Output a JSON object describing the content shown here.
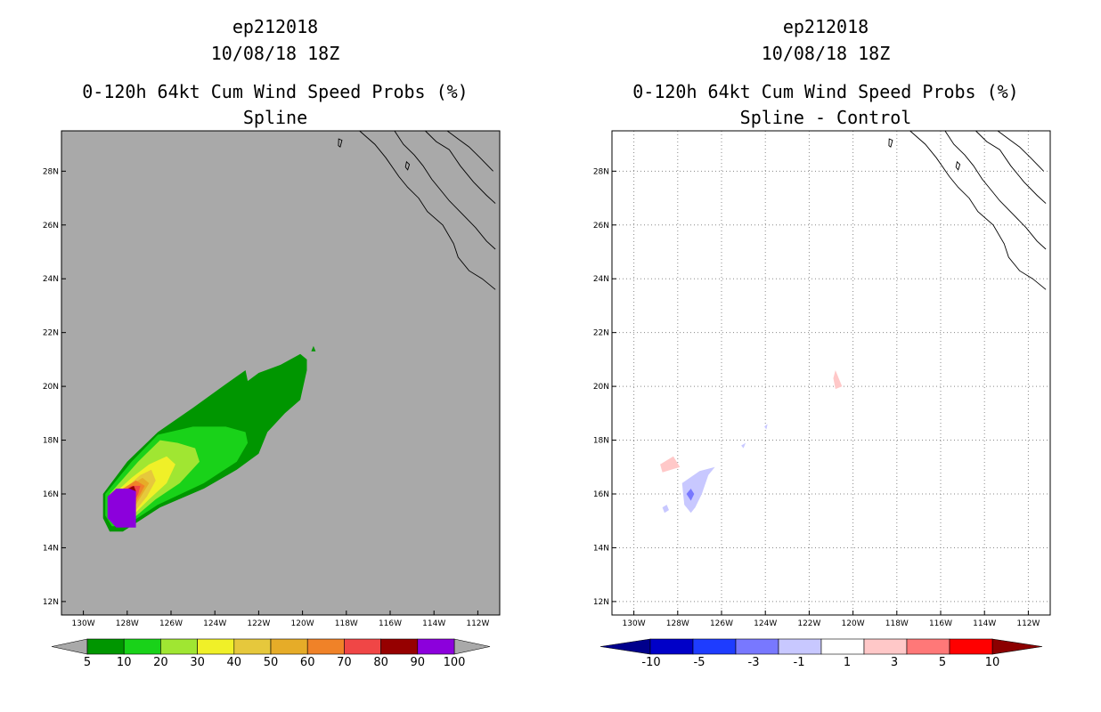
{
  "colors": {
    "land_bg": "#a9a9a9",
    "prob_scale": [
      "#009600",
      "#19d219",
      "#a0e632",
      "#f0f028",
      "#e6c83c",
      "#e6ac28",
      "#f08228",
      "#f04646",
      "#960000",
      "#8c00dc"
    ],
    "prob_under": "#a9a9a9",
    "prob_over": "#a9a9a9",
    "diff_scale": [
      "#0000c8",
      "#1e3cff",
      "#7878ff",
      "#c8c8ff",
      "#ffffff",
      "#ffc8c8",
      "#ff7878",
      "#ff0000"
    ],
    "diff_under": "#00008c",
    "diff_over": "#8c0000"
  },
  "chart_data": [
    {
      "type": "contour-map",
      "storm": "ep212018",
      "date": "10/08/18 18Z",
      "title": "0-120h 64kt Cum Wind Speed Probs (%)",
      "subtitle": "Spline",
      "lon_range": [
        -131,
        -111
      ],
      "lat_range": [
        11.5,
        29.5
      ],
      "x_ticks": [
        "130W",
        "128W",
        "126W",
        "124W",
        "122W",
        "120W",
        "118W",
        "116W",
        "114W",
        "112W"
      ],
      "y_ticks": [
        "12N",
        "14N",
        "16N",
        "18N",
        "20N",
        "22N",
        "24N",
        "26N",
        "28N"
      ],
      "grid": false,
      "colorbar_levels": [
        5,
        10,
        20,
        30,
        40,
        50,
        60,
        70,
        80,
        90,
        100
      ],
      "colorbar_labels": [
        "5",
        "10",
        "20",
        "30",
        "40",
        "50",
        "60",
        "70",
        "80",
        "90",
        "100"
      ],
      "contours": [
        {
          "level": 5,
          "points": [
            [
              -128.8,
              14.6
            ],
            [
              -128.2,
              14.6
            ],
            [
              -126.5,
              15.5
            ],
            [
              -124.5,
              16.2
            ],
            [
              -123,
              16.9
            ],
            [
              -122,
              17.5
            ],
            [
              -121.6,
              18.3
            ],
            [
              -120.8,
              19.0
            ],
            [
              -120.1,
              19.5
            ],
            [
              -119.8,
              20.6
            ],
            [
              -119.8,
              21.0
            ],
            [
              -120.1,
              21.2
            ],
            [
              -121.0,
              20.8
            ],
            [
              -122.0,
              20.5
            ],
            [
              -122.5,
              20.2
            ],
            [
              -122.6,
              20.6
            ],
            [
              -123.3,
              20.2
            ],
            [
              -125.0,
              19.2
            ],
            [
              -126.6,
              18.3
            ],
            [
              -128.0,
              17.2
            ],
            [
              -129.1,
              16.0
            ],
            [
              -129.1,
              15.1
            ]
          ]
        },
        {
          "level": 10,
          "points": [
            [
              -128.7,
              14.8
            ],
            [
              -128.1,
              14.8
            ],
            [
              -126.6,
              15.6
            ],
            [
              -124.5,
              16.4
            ],
            [
              -123.0,
              17.2
            ],
            [
              -122.5,
              17.9
            ],
            [
              -122.6,
              18.3
            ],
            [
              -123.5,
              18.5
            ],
            [
              -125.0,
              18.5
            ],
            [
              -126.6,
              18.2
            ],
            [
              -127.8,
              17.2
            ],
            [
              -129.0,
              16.0
            ],
            [
              -129.0,
              15.2
            ]
          ]
        },
        {
          "level": 20,
          "points": [
            [
              -128.6,
              14.9
            ],
            [
              -128.0,
              14.9
            ],
            [
              -126.7,
              15.8
            ],
            [
              -125.6,
              16.4
            ],
            [
              -124.7,
              17.2
            ],
            [
              -124.9,
              17.7
            ],
            [
              -125.7,
              17.9
            ],
            [
              -126.5,
              18.0
            ],
            [
              -127.5,
              17.2
            ],
            [
              -128.8,
              16.0
            ],
            [
              -128.8,
              15.3
            ]
          ]
        },
        {
          "level": 30,
          "points": [
            [
              -128.5,
              15.0
            ],
            [
              -128.0,
              15.0
            ],
            [
              -127.0,
              15.8
            ],
            [
              -126.2,
              16.4
            ],
            [
              -125.8,
              17.1
            ],
            [
              -126.2,
              17.4
            ],
            [
              -127.0,
              17.1
            ],
            [
              -127.8,
              16.6
            ],
            [
              -128.6,
              16.0
            ]
          ]
        },
        {
          "level": 40,
          "points": [
            [
              -128.4,
              15.1
            ],
            [
              -127.9,
              15.1
            ],
            [
              -127.1,
              15.9
            ],
            [
              -126.7,
              16.5
            ],
            [
              -126.9,
              16.9
            ],
            [
              -127.4,
              16.7
            ],
            [
              -128.4,
              16.0
            ]
          ]
        },
        {
          "level": 50,
          "points": [
            [
              -128.4,
              15.2
            ],
            [
              -127.9,
              15.2
            ],
            [
              -127.3,
              16.0
            ],
            [
              -127.0,
              16.4
            ],
            [
              -127.3,
              16.6
            ],
            [
              -127.9,
              16.3
            ],
            [
              -128.4,
              16.0
            ]
          ]
        },
        {
          "level": 60,
          "points": [
            [
              -128.4,
              15.3
            ],
            [
              -127.9,
              15.3
            ],
            [
              -127.4,
              16.0
            ],
            [
              -127.2,
              16.3
            ],
            [
              -127.6,
              16.5
            ],
            [
              -128.2,
              16.2
            ],
            [
              -128.4,
              16.0
            ]
          ]
        },
        {
          "level": 70,
          "points": [
            [
              -128.4,
              15.4
            ],
            [
              -127.9,
              15.4
            ],
            [
              -127.5,
              16.0
            ],
            [
              -127.4,
              16.3
            ],
            [
              -127.8,
              16.3
            ],
            [
              -128.4,
              16.0
            ]
          ]
        },
        {
          "level": 80,
          "points": [
            [
              -128.3,
              15.5
            ],
            [
              -127.9,
              15.5
            ],
            [
              -127.6,
              16.1
            ],
            [
              -127.7,
              16.3
            ],
            [
              -128.2,
              16.1
            ]
          ]
        },
        {
          "level": 90,
          "points": [
            [
              -128.9,
              15.1
            ],
            [
              -128.5,
              14.75
            ],
            [
              -127.6,
              14.75
            ],
            [
              -127.6,
              16.1
            ],
            [
              -127.9,
              16.2
            ],
            [
              -128.5,
              16.2
            ],
            [
              -128.9,
              15.9
            ]
          ]
        },
        {
          "level": 100,
          "points": [
            [
              -128.7,
              15.1
            ],
            [
              -128.4,
              14.9
            ],
            [
              -127.7,
              14.9
            ],
            [
              -127.7,
              16.0
            ],
            [
              -128.4,
              16.1
            ],
            [
              -128.7,
              15.9
            ]
          ]
        }
      ],
      "speck": {
        "level": 5,
        "points": [
          [
            -119.6,
            21.3
          ],
          [
            -119.5,
            21.5
          ],
          [
            -119.4,
            21.3
          ]
        ]
      }
    },
    {
      "type": "contour-map",
      "storm": "ep212018",
      "date": "10/08/18 18Z",
      "title": "0-120h 64kt Cum Wind Speed Probs (%)",
      "subtitle": "Spline - Control",
      "lon_range": [
        -131,
        -111
      ],
      "lat_range": [
        11.5,
        29.5
      ],
      "x_ticks": [
        "130W",
        "128W",
        "126W",
        "124W",
        "122W",
        "120W",
        "118W",
        "116W",
        "114W",
        "112W"
      ],
      "y_ticks": [
        "12N",
        "14N",
        "16N",
        "18N",
        "20N",
        "22N",
        "24N",
        "26N",
        "28N"
      ],
      "grid": true,
      "colorbar_levels": [
        -10,
        -5,
        -3,
        -1,
        1,
        3,
        5,
        10
      ],
      "colorbar_labels": [
        "-10",
        "-5",
        "-3",
        "-1",
        "1",
        "3",
        "5",
        "10"
      ],
      "contours": [
        {
          "level": 1,
          "points": [
            [
              -128.8,
              17.1
            ],
            [
              -128.2,
              17.4
            ],
            [
              -127.9,
              17.0
            ],
            [
              -128.7,
              16.8
            ]
          ]
        },
        {
          "level": 1,
          "points": [
            [
              -120.9,
              20.3
            ],
            [
              -120.8,
              20.6
            ],
            [
              -120.5,
              20.0
            ],
            [
              -120.8,
              19.9
            ]
          ]
        },
        {
          "level": -1,
          "points": [
            [
              -127.8,
              16.4
            ],
            [
              -127.0,
              16.85
            ],
            [
              -126.3,
              17.0
            ],
            [
              -126.6,
              16.7
            ],
            [
              -126.9,
              16.0
            ],
            [
              -127.2,
              15.5
            ],
            [
              -127.4,
              15.3
            ],
            [
              -127.7,
              15.6
            ]
          ]
        },
        {
          "level": -1,
          "points": [
            [
              -128.7,
              15.5
            ],
            [
              -128.5,
              15.6
            ],
            [
              -128.4,
              15.4
            ],
            [
              -128.6,
              15.3
            ]
          ]
        },
        {
          "level": -1,
          "points": [
            [
              -125.1,
              17.8
            ],
            [
              -124.9,
              17.9
            ],
            [
              -125.0,
              17.7
            ]
          ]
        },
        {
          "level": -1,
          "points": [
            [
              -124.05,
              18.5
            ],
            [
              -123.9,
              18.6
            ],
            [
              -123.95,
              18.4
            ]
          ]
        },
        {
          "level": -3,
          "points": [
            [
              -127.6,
              16.0
            ],
            [
              -127.4,
              16.2
            ],
            [
              -127.25,
              16.0
            ],
            [
              -127.4,
              15.75
            ]
          ]
        }
      ]
    }
  ]
}
